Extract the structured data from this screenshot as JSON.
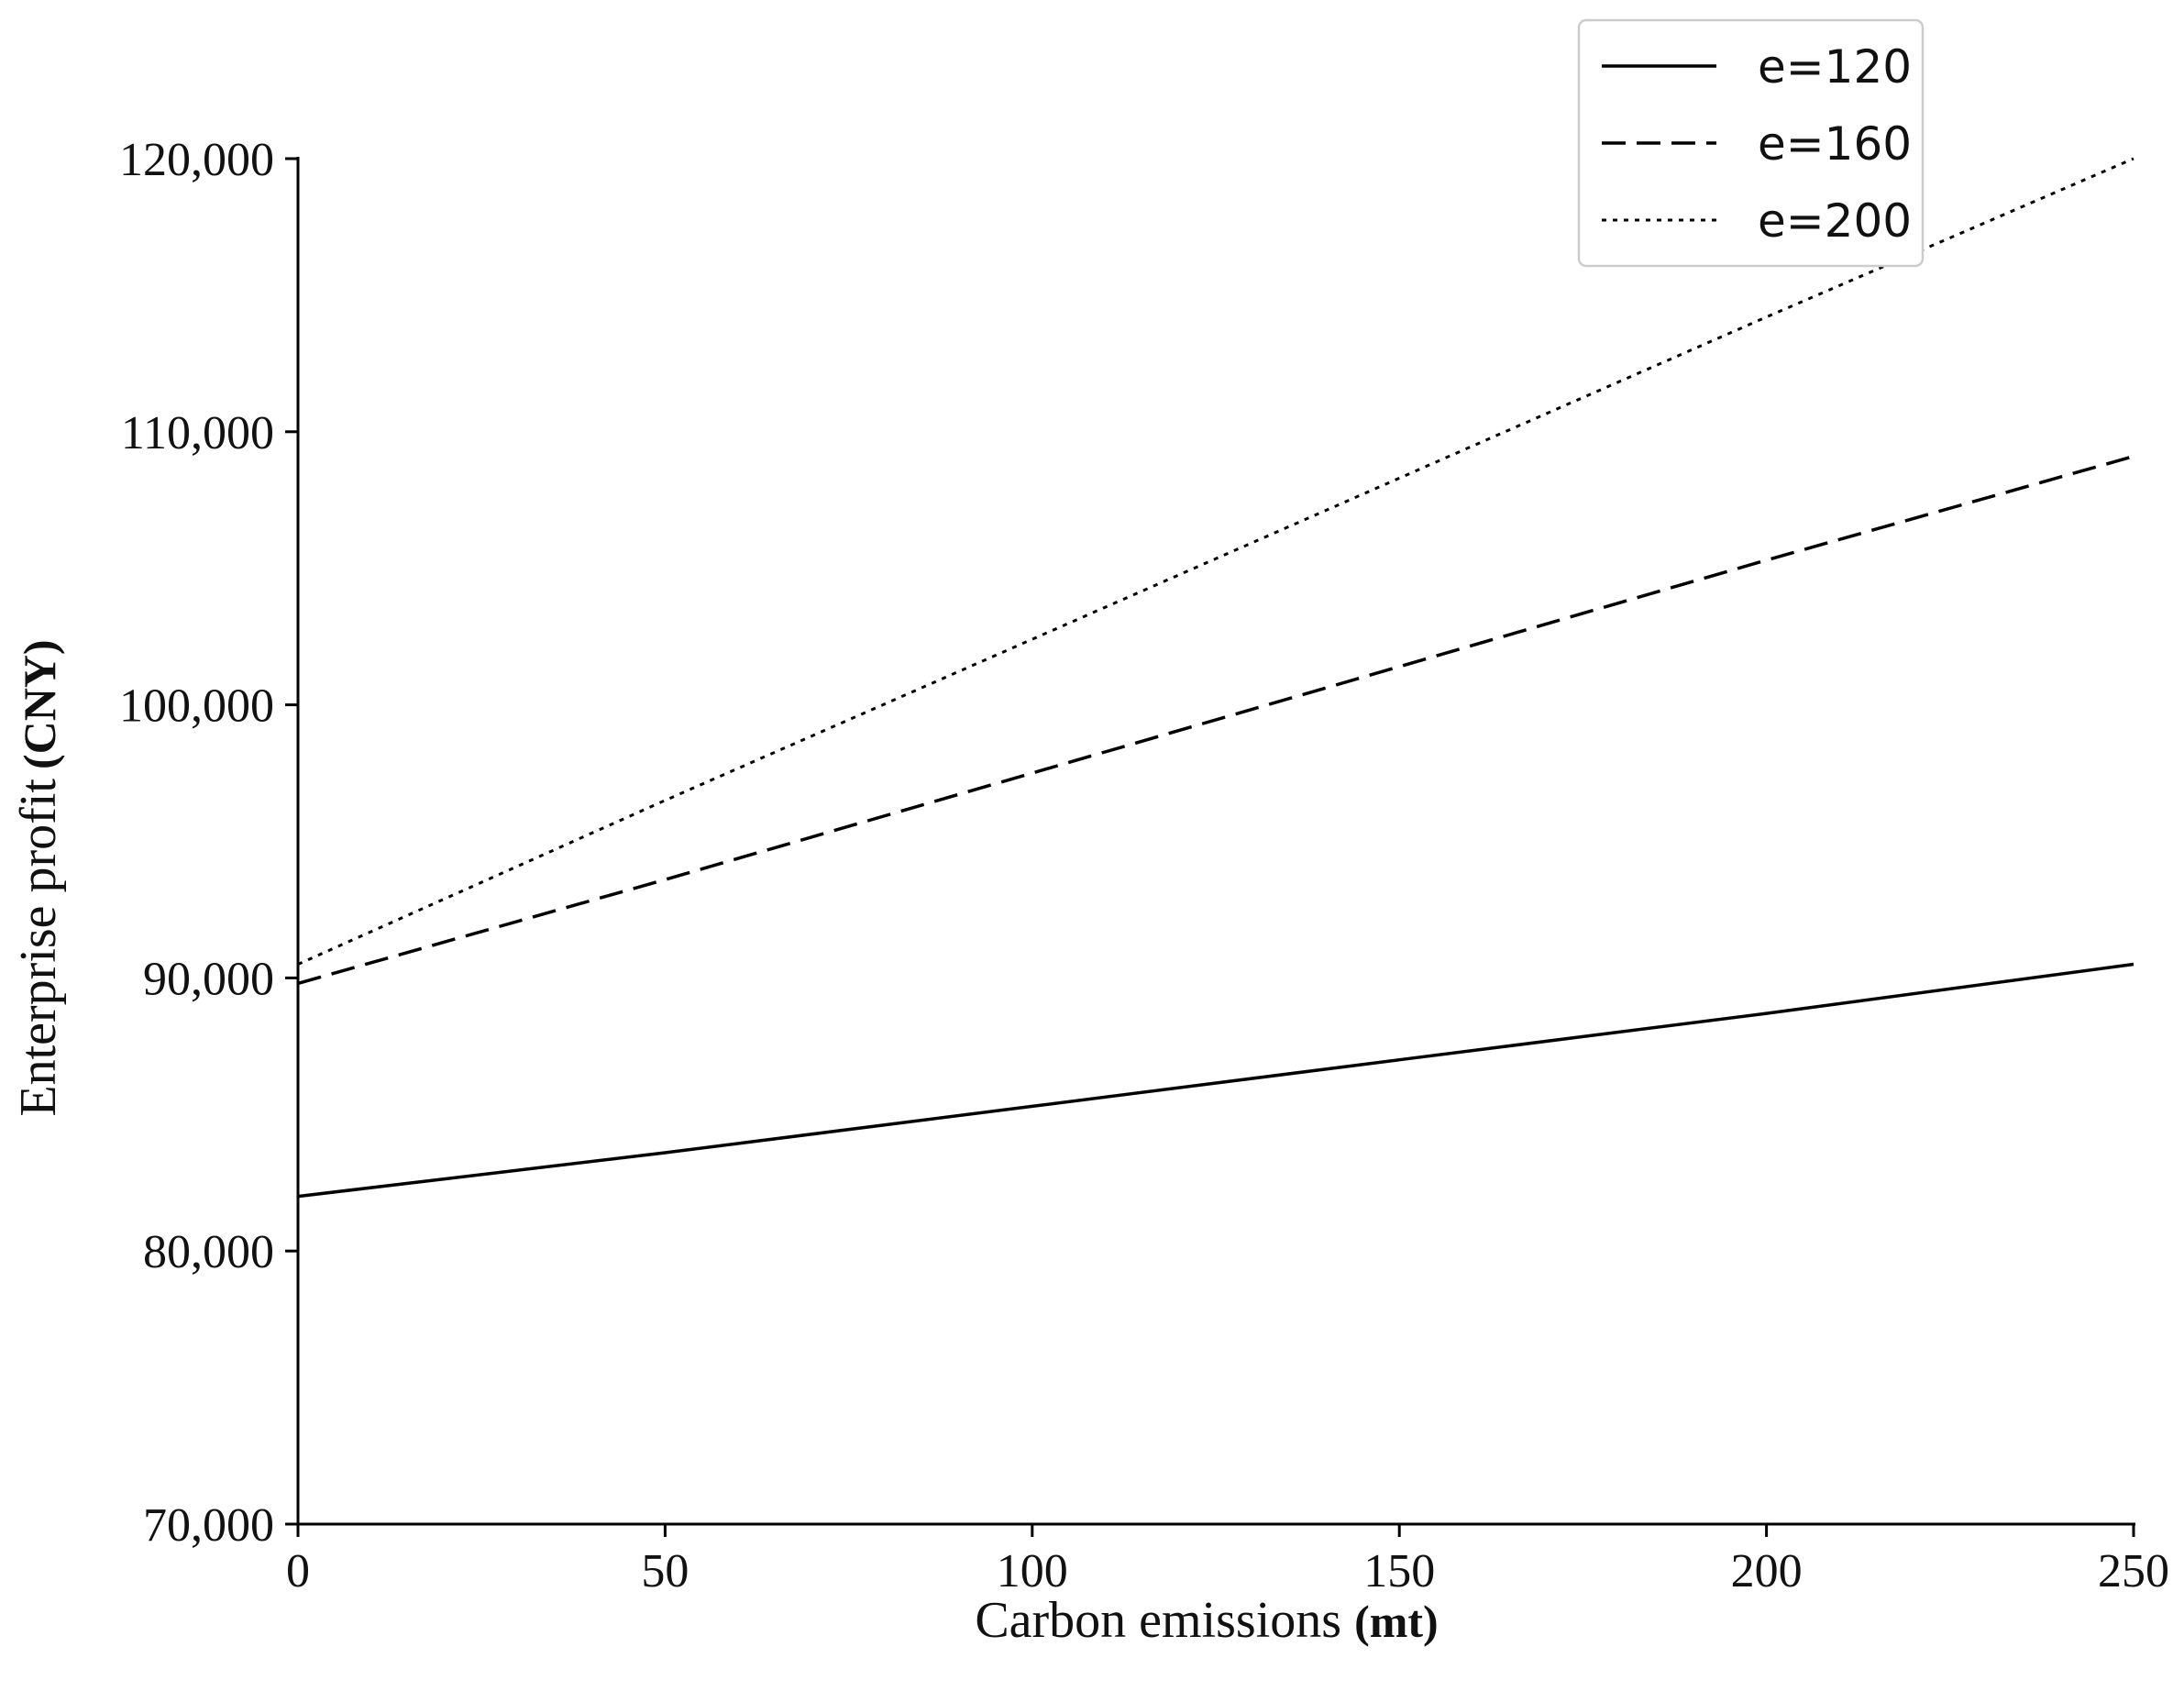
{
  "chart_data": {
    "type": "line",
    "xlabel": "Carbon emissions",
    "xlabel_unit": "(mt)",
    "ylabel": "Enterprise profit",
    "ylabel_unit": "(CNY)",
    "xlim": [
      0,
      250
    ],
    "ylim": [
      70000,
      120000
    ],
    "x_ticks": [
      0,
      50,
      100,
      150,
      200,
      250
    ],
    "x_tick_labels": [
      "0",
      "50",
      "100",
      "150",
      "200",
      "250"
    ],
    "y_ticks": [
      70000,
      80000,
      90000,
      100000,
      110000,
      120000
    ],
    "y_tick_labels": [
      "70,000",
      "80,000",
      "90,000",
      "100,000",
      "110,000",
      "120,000"
    ],
    "grid": false,
    "legend_position": "top-right",
    "x": [
      0,
      50,
      100,
      150,
      200,
      250
    ],
    "series": [
      {
        "name": "e=120",
        "style": "solid",
        "color": "#000000",
        "values": [
          82000,
          83600,
          85300,
          87000,
          88700,
          90500
        ]
      },
      {
        "name": "e=160",
        "style": "dashed",
        "color": "#000000",
        "values": [
          89800,
          93600,
          97500,
          101400,
          105300,
          109100
        ]
      },
      {
        "name": "e=200",
        "style": "dotted",
        "color": "#000000",
        "values": [
          90500,
          96500,
          102400,
          108300,
          114200,
          120000
        ]
      }
    ]
  }
}
